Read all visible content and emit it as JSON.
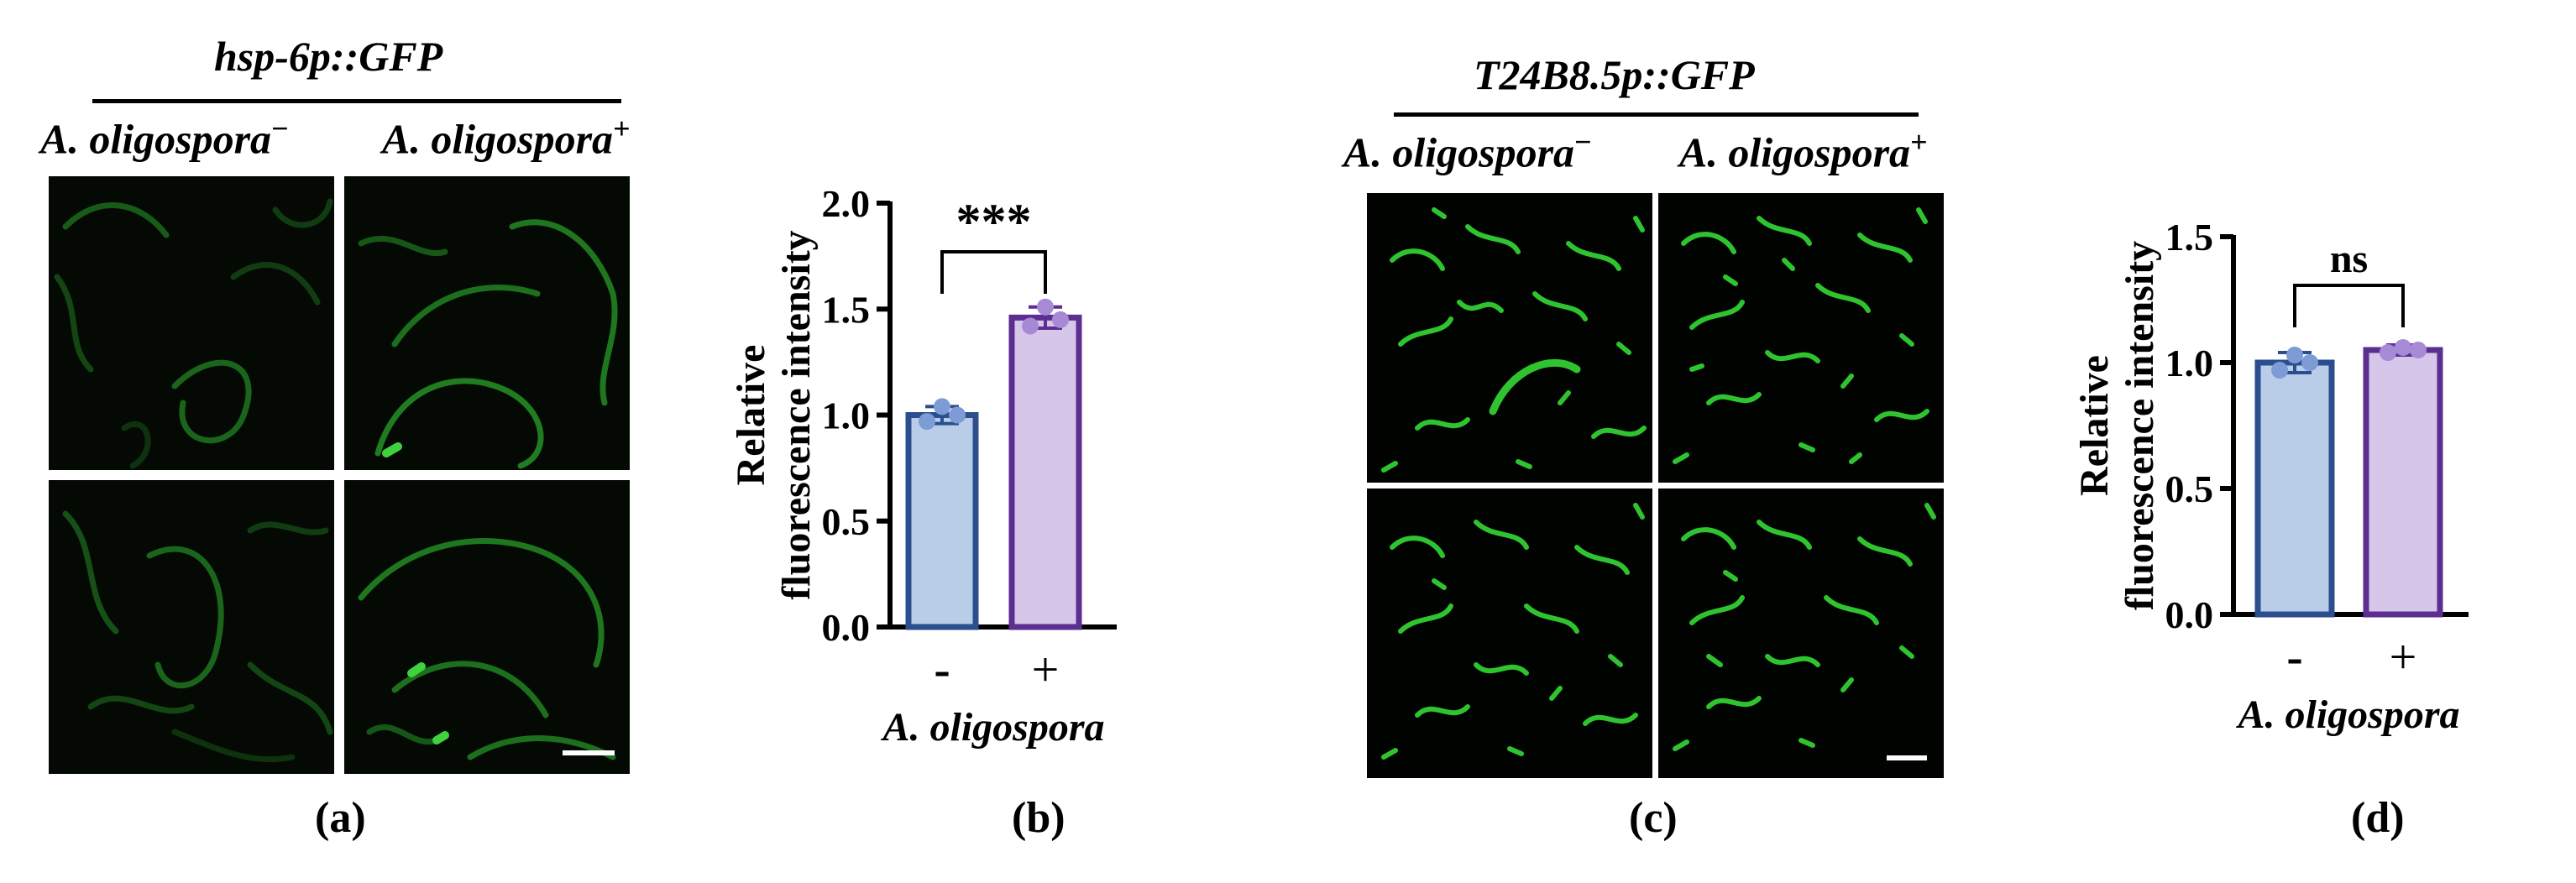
{
  "panels": [
    {
      "label": "(a)",
      "title": "hsp-6p::GFP",
      "conditions": [
        {
          "name": "A. oligospora",
          "sign": "−"
        },
        {
          "name": "A. oligospora",
          "sign": "+"
        }
      ]
    },
    {
      "label": "(b)"
    },
    {
      "label": "(c)",
      "title": "T24B8.5p::GFP",
      "conditions": [
        {
          "name": "A. oligospora",
          "sign": "−"
        },
        {
          "name": "A. oligospora",
          "sign": "+"
        }
      ]
    },
    {
      "label": "(d)"
    }
  ],
  "colors": {
    "bar_minus_fill": "#b9cde9",
    "bar_minus_edge": "#2b4e8f",
    "dot_minus": "#7d9bd5",
    "bar_plus_fill": "#d5c6ea",
    "bar_plus_edge": "#5b2e90",
    "dot_plus": "#a78ad6",
    "gfp_a": "#1e7a1e",
    "gfp_c": "#2fd02f"
  },
  "chart_data": [
    {
      "type": "bar",
      "panel": "(b)",
      "ylabel": [
        "Relative",
        "fluorescence intensity"
      ],
      "xlabel": "A. oligospora",
      "categories": [
        "-",
        "+"
      ],
      "values": [
        1.0,
        1.46
      ],
      "errors": [
        0.04,
        0.05
      ],
      "points": [
        [
          0.97,
          1.04,
          1.0
        ],
        [
          1.42,
          1.51,
          1.45
        ]
      ],
      "ylim": [
        0,
        2.0
      ],
      "yticks": [
        "0.0",
        "0.5",
        "1.0",
        "1.5",
        "2.0"
      ],
      "significance": "***"
    },
    {
      "type": "bar",
      "panel": "(d)",
      "ylabel": [
        "Relative",
        "fluorescence intensity"
      ],
      "xlabel": "A. oligospora",
      "categories": [
        "-",
        "+"
      ],
      "values": [
        1.0,
        1.05
      ],
      "errors": [
        0.04,
        0.02
      ],
      "points": [
        [
          0.97,
          1.03,
          1.0
        ],
        [
          1.04,
          1.06,
          1.05
        ]
      ],
      "ylim": [
        0,
        1.5
      ],
      "yticks": [
        "0.0",
        "0.5",
        "1.0",
        "1.5"
      ],
      "significance": "ns"
    }
  ]
}
